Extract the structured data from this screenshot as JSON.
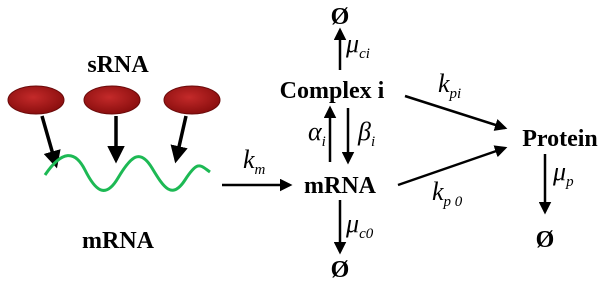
{
  "left": {
    "srna_label": "sRNA",
    "mrna_label": "mRNA"
  },
  "nodes": {
    "decay_top": "Ø",
    "complex": "Complex i",
    "mrna": "mRNA",
    "protein": "Protein",
    "decay_mrna": "Ø",
    "decay_protein": "Ø"
  },
  "rates": {
    "k_m": {
      "symbol": "k",
      "sub": "m"
    },
    "mu_ci": {
      "symbol": "μ",
      "sub": "ci"
    },
    "alpha_i": {
      "symbol": "α",
      "sub": "i"
    },
    "beta_i": {
      "symbol": "β",
      "sub": "i"
    },
    "mu_c0": {
      "symbol": "μ",
      "sub": "c0"
    },
    "k_pi": {
      "symbol": "k",
      "sub": "pi"
    },
    "k_p0": {
      "symbol": "k",
      "sub": "p 0"
    },
    "mu_p": {
      "symbol": "μ",
      "sub": "p"
    }
  }
}
